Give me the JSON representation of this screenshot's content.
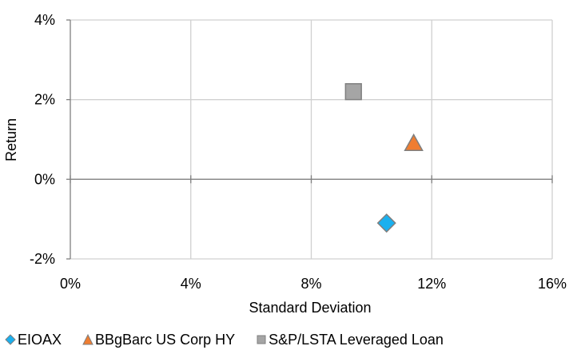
{
  "chart_data": {
    "type": "scatter",
    "xlabel": "Standard Deviation",
    "ylabel": "Return",
    "xlim": [
      0,
      16
    ],
    "ylim": [
      -2,
      4
    ],
    "x_ticks": [
      0,
      4,
      8,
      12,
      16
    ],
    "y_ticks": [
      -2,
      0,
      2,
      4
    ],
    "x_tick_labels": [
      "0%",
      "4%",
      "8%",
      "12%",
      "16%"
    ],
    "y_tick_labels": [
      "-2%",
      "0%",
      "2%",
      "4%"
    ],
    "grid": true,
    "legend_position": "bottom",
    "series": [
      {
        "name": "EIOAX",
        "marker": "diamond",
        "color": "#1ab0ef",
        "points": [
          {
            "x": 10.5,
            "y": -1.1
          }
        ]
      },
      {
        "name": "BBgBarc US Corp HY",
        "marker": "triangle",
        "color": "#ef7d31",
        "points": [
          {
            "x": 11.4,
            "y": 0.9
          }
        ]
      },
      {
        "name": "S&P/LSTA Leveraged Loan",
        "marker": "square",
        "color": "#a5a5a5",
        "points": [
          {
            "x": 9.4,
            "y": 2.2
          }
        ]
      }
    ]
  }
}
